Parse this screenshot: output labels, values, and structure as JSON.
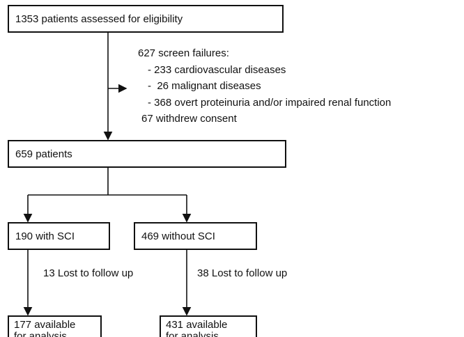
{
  "nodes": [
    {
      "lines": [
        "1353 patients assessed for eligibility"
      ]
    },
    {
      "lines": [
        "659 patients"
      ]
    },
    {
      "lines": [
        "190 with SCI"
      ]
    },
    {
      "lines": [
        "469 without SCI"
      ]
    },
    {
      "lines": [
        "177 available",
        "for analysis"
      ]
    },
    {
      "lines": [
        "431 available",
        "for analysis"
      ]
    }
  ],
  "exclusion": {
    "lines": [
      "627 screen failures:",
      "- 233 cardiovascular diseases",
      "-  26 malignant diseases",
      "- 368 overt proteinuria and/or impaired renal function",
      "67 withdrew consent"
    ]
  },
  "losses": [
    "13 Lost to follow up",
    "38 Lost to follow up"
  ]
}
